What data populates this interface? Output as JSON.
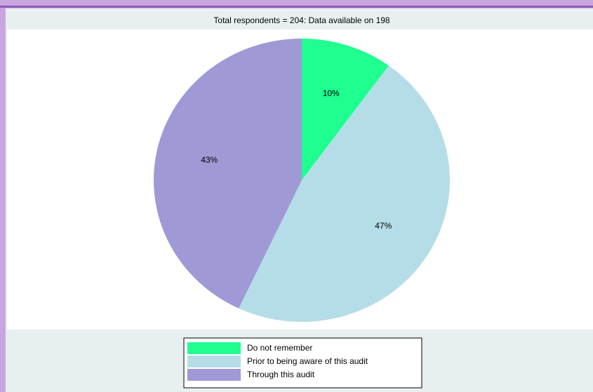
{
  "chart_data": {
    "type": "pie",
    "subtitle": "Total respondents = 204: Data available on 198",
    "categories": [
      "Do not remember",
      "Prior to being aware of this audit",
      "Through this audit"
    ],
    "values": [
      10,
      47,
      43
    ],
    "value_labels": [
      "10%",
      "47%",
      "43%"
    ],
    "colors": [
      "#1eff8f",
      "#b5dde8",
      "#9f99d5"
    ]
  }
}
